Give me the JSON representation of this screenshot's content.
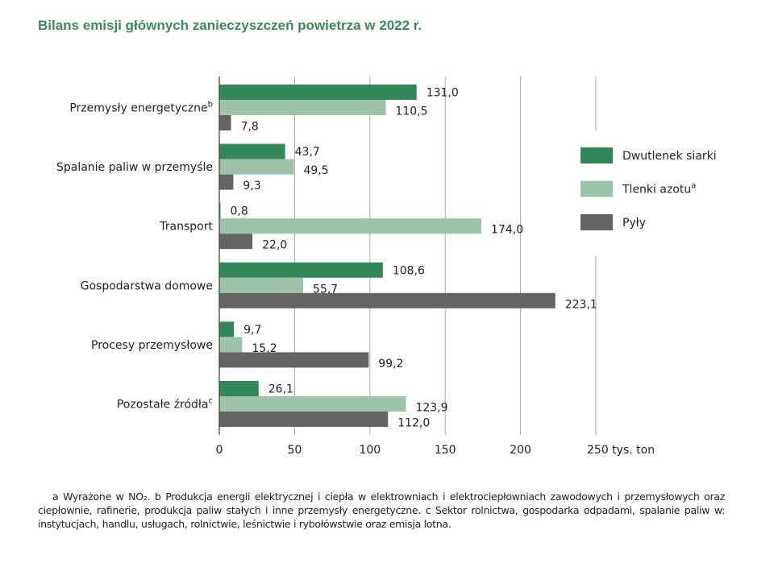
{
  "chart_data": {
    "type": "bar",
    "orientation": "horizontal",
    "title": "Bilans emisji głównych zanieczyszczeń powietrza w 2022 r.",
    "categories": [
      {
        "label": "Przemysły energetyczne",
        "sup": "b"
      },
      {
        "label": "Spalanie paliw w przemyśle",
        "sup": ""
      },
      {
        "label": "Transport",
        "sup": ""
      },
      {
        "label": "Gospodarstwa domowe",
        "sup": ""
      },
      {
        "label": "Procesy przemysłowe",
        "sup": ""
      },
      {
        "label": "Pozostałe źródła",
        "sup": "c"
      }
    ],
    "series": [
      {
        "name": "Dwutlenek siarki",
        "sup": "",
        "color": "#33885a",
        "values": [
          131.0,
          43.7,
          0.8,
          108.6,
          9.7,
          26.1
        ],
        "labels": [
          "131,0",
          "43,7",
          "0,8",
          "108,6",
          "9,7",
          "26,1"
        ]
      },
      {
        "name": "Tlenki azotu",
        "sup": "a",
        "color": "#9dc4aa",
        "values": [
          110.5,
          49.5,
          174.0,
          55.7,
          15.2,
          123.9
        ],
        "labels": [
          "110,5",
          "49,5",
          "174,0",
          "55,7",
          "15,2",
          "123,9"
        ]
      },
      {
        "name": "Pyły",
        "sup": "",
        "color": "#646464",
        "values": [
          7.8,
          9.3,
          22.0,
          223.1,
          99.2,
          112.0
        ],
        "labels": [
          "7,8",
          "9,3",
          "22,0",
          "223,1",
          "99,2",
          "112,0"
        ]
      }
    ],
    "xlim": [
      0,
      250
    ],
    "xticks": [
      "0",
      "50",
      "100",
      "150",
      "200",
      "250 tys. ton"
    ],
    "xtick_values": [
      0,
      50,
      100,
      150,
      200,
      250
    ],
    "grid": true,
    "legend_position": "right"
  },
  "footnote": "a Wyrażone w NO₂. b Produkcja energii elektrycznej i ciepła w elektrowniach i elektrociepłowniach zawodowych i przemysłowych oraz ciepłownie, rafinerie, produkcja paliw stałych i inne przemysły energetyczne. c Sektor rolnictwa, gospodarka odpadami, spalanie paliw w: instytucjach, handlu, usługach, rolnictwie, leśnictwie i rybołówstwie oraz emisja lotna."
}
